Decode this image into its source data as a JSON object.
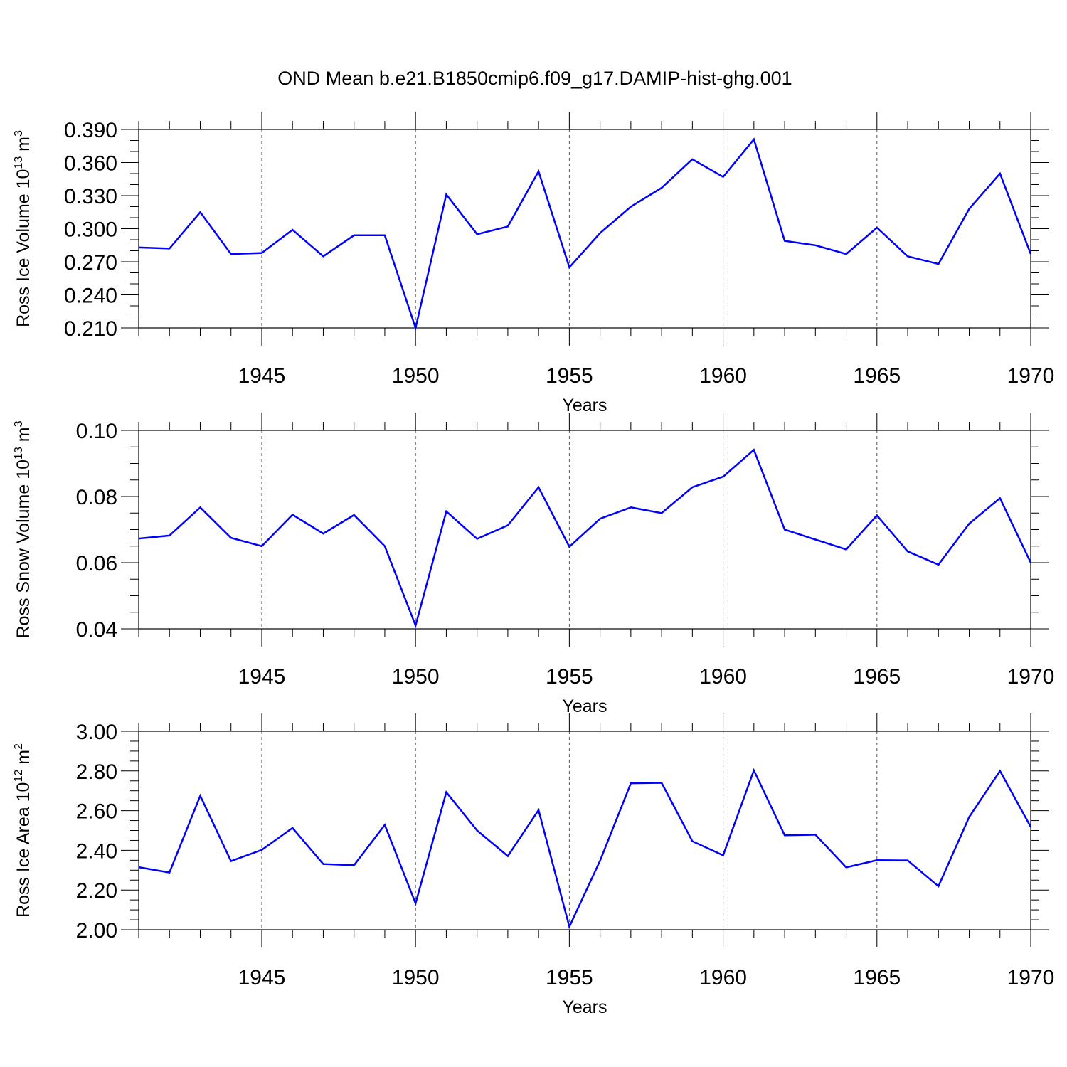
{
  "title": "OND Mean b.e21.B1850cmip6.f09_g17.DAMIP-hist-ghg.001",
  "chart_data": [
    {
      "type": "line",
      "xlabel": "Years",
      "ylabel": {
        "base": "Ross Ice Volume 10",
        "exp1": "13",
        "mid": " m",
        "exp2": "3"
      },
      "xlim": [
        1941,
        1970
      ],
      "ylim": [
        0.21,
        0.39
      ],
      "xticks": [
        1945,
        1950,
        1955,
        1960,
        1965,
        1970
      ],
      "xtick_labels": [
        "1945",
        "1950",
        "1955",
        "1960",
        "1965",
        "1970"
      ],
      "yticks": [
        0.21,
        0.24,
        0.27,
        0.3,
        0.33,
        0.36,
        0.39
      ],
      "ytick_labels": [
        "0.210",
        "0.240",
        "0.270",
        "0.300",
        "0.330",
        "0.360",
        "0.390"
      ],
      "x_minor_step": 1,
      "y_minor_step": 0.01,
      "grid": "vertical dashed at major x ticks",
      "color": "#0000ff",
      "x": [
        1941,
        1942,
        1943,
        1944,
        1945,
        1946,
        1947,
        1948,
        1949,
        1950,
        1951,
        1952,
        1953,
        1954,
        1955,
        1956,
        1957,
        1958,
        1959,
        1960,
        1961,
        1962,
        1963,
        1964,
        1965,
        1966,
        1967,
        1968,
        1969,
        1970
      ],
      "values": [
        0.283,
        0.282,
        0.315,
        0.277,
        0.278,
        0.299,
        0.275,
        0.294,
        0.294,
        0.21,
        0.331,
        0.295,
        0.302,
        0.352,
        0.265,
        0.296,
        0.32,
        0.337,
        0.363,
        0.347,
        0.381,
        0.289,
        0.285,
        0.277,
        0.301,
        0.275,
        0.268,
        0.318,
        0.35,
        0.277
      ]
    },
    {
      "type": "line",
      "xlabel": "Years",
      "ylabel": {
        "base": "Ross Snow Volume 10",
        "exp1": "13",
        "mid": " m",
        "exp2": "3"
      },
      "xlim": [
        1941,
        1970
      ],
      "ylim": [
        0.04,
        0.1
      ],
      "xticks": [
        1945,
        1950,
        1955,
        1960,
        1965,
        1970
      ],
      "xtick_labels": [
        "1945",
        "1950",
        "1955",
        "1960",
        "1965",
        "1970"
      ],
      "yticks": [
        0.04,
        0.06,
        0.08,
        0.1
      ],
      "ytick_labels": [
        "0.04",
        "0.06",
        "0.08",
        "0.10"
      ],
      "x_minor_step": 1,
      "y_minor_step": 0.005,
      "grid": "vertical dashed at major x ticks",
      "color": "#0000ff",
      "x": [
        1941,
        1942,
        1943,
        1944,
        1945,
        1946,
        1947,
        1948,
        1949,
        1950,
        1951,
        1952,
        1953,
        1954,
        1955,
        1956,
        1957,
        1958,
        1959,
        1960,
        1961,
        1962,
        1963,
        1964,
        1965,
        1966,
        1967,
        1968,
        1969,
        1970
      ],
      "values": [
        0.0673,
        0.0682,
        0.0767,
        0.0675,
        0.065,
        0.0745,
        0.0688,
        0.0744,
        0.065,
        0.041,
        0.0755,
        0.0672,
        0.0713,
        0.0828,
        0.0648,
        0.0733,
        0.0767,
        0.075,
        0.0828,
        0.086,
        0.0941,
        0.07,
        0.067,
        0.064,
        0.0743,
        0.0634,
        0.0594,
        0.0718,
        0.0795,
        0.06
      ]
    },
    {
      "type": "line",
      "xlabel": "Years",
      "ylabel": {
        "base": "Ross Ice Area 10",
        "exp1": "12",
        "mid": " m",
        "exp2": "2"
      },
      "xlim": [
        1941,
        1970
      ],
      "ylim": [
        2.0,
        3.0
      ],
      "xticks": [
        1945,
        1950,
        1955,
        1960,
        1965,
        1970
      ],
      "xtick_labels": [
        "1945",
        "1950",
        "1955",
        "1960",
        "1965",
        "1970"
      ],
      "yticks": [
        2.0,
        2.2,
        2.4,
        2.6,
        2.8,
        3.0
      ],
      "ytick_labels": [
        "2.00",
        "2.20",
        "2.40",
        "2.60",
        "2.80",
        "3.00"
      ],
      "x_minor_step": 1,
      "y_minor_step": 0.05,
      "grid": "vertical dashed at major x ticks",
      "color": "#0000ff",
      "x": [
        1941,
        1942,
        1943,
        1944,
        1945,
        1946,
        1947,
        1948,
        1949,
        1950,
        1951,
        1952,
        1953,
        1954,
        1955,
        1956,
        1957,
        1958,
        1959,
        1960,
        1961,
        1962,
        1963,
        1964,
        1965,
        1966,
        1967,
        1968,
        1969,
        1970
      ],
      "values": [
        2.315,
        2.288,
        2.675,
        2.346,
        2.402,
        2.513,
        2.331,
        2.325,
        2.528,
        2.133,
        2.693,
        2.5,
        2.371,
        2.603,
        2.015,
        2.348,
        2.738,
        2.74,
        2.446,
        2.375,
        2.803,
        2.476,
        2.479,
        2.314,
        2.35,
        2.349,
        2.219,
        2.568,
        2.8,
        2.518
      ]
    }
  ]
}
